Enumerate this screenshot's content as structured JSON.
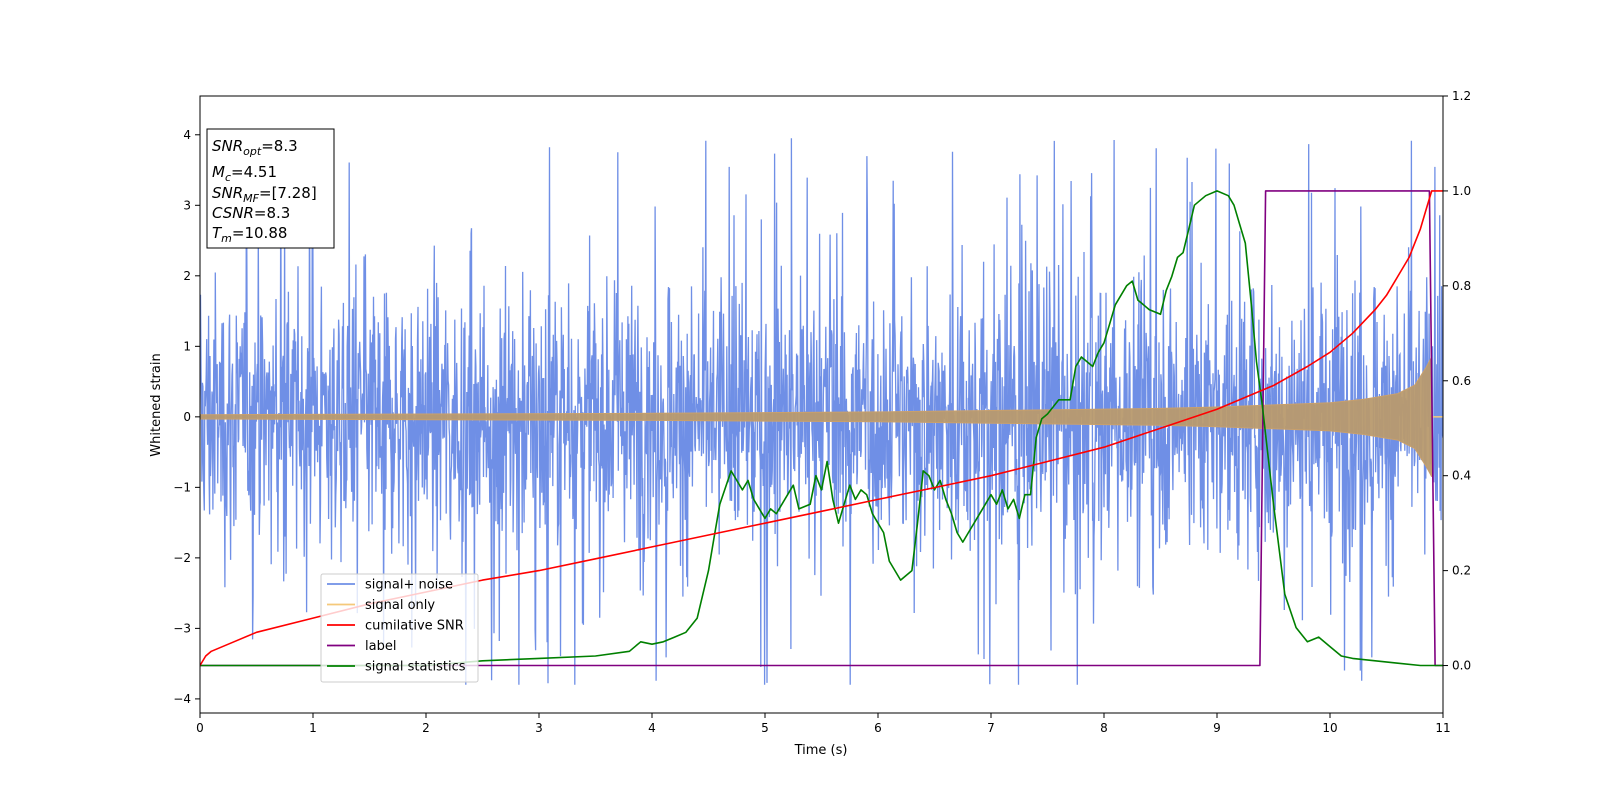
{
  "chart_data": {
    "type": "line",
    "xlabel": "Time (s)",
    "ylabel": "Whitened strain",
    "xlim": [
      0,
      11
    ],
    "ylim_left": [
      -4.2,
      4.55
    ],
    "ylim_right": [
      -0.1,
      1.2
    ],
    "xticks": [
      0,
      1,
      2,
      3,
      4,
      5,
      6,
      7,
      8,
      9,
      10,
      11
    ],
    "yticks_left": [
      -4,
      -3,
      -2,
      -1,
      0,
      1,
      2,
      3,
      4
    ],
    "yticks_right": [
      "0.0",
      "0.2",
      "0.4",
      "0.6",
      "0.8",
      "1.0",
      "1.2"
    ],
    "legend_position": "lower-left",
    "info_box": {
      "snr_opt": "=8.3",
      "mc": "=4.51",
      "snr_mf": "=[7.28]",
      "csnr": "=8.3",
      "tm": "=10.88"
    },
    "series": [
      {
        "name": "signal+ noise",
        "axis": "left",
        "color": "#6f8fe6",
        "description": "noise, approx. ±2 with spikes to ±4",
        "typical_range": [
          -2.0,
          2.0
        ],
        "peak_range": [
          -3.8,
          4.15
        ]
      },
      {
        "name": "signal only",
        "axis": "left",
        "color": "#f5c97a",
        "description": "chirp with growing envelope",
        "envelope_x": [
          0,
          2,
          4,
          6,
          7,
          8,
          8.5,
          9,
          9.5,
          10,
          10.3,
          10.6,
          10.75,
          10.85,
          10.9
        ],
        "envelope_y": [
          0.03,
          0.04,
          0.05,
          0.07,
          0.09,
          0.11,
          0.12,
          0.14,
          0.17,
          0.2,
          0.25,
          0.33,
          0.45,
          0.7,
          0.85
        ]
      },
      {
        "name": "cumilative SNR",
        "axis": "right",
        "color": "#ff0000",
        "x": [
          0,
          0.05,
          0.1,
          0.3,
          0.5,
          1.0,
          1.5,
          2.0,
          2.5,
          3.0,
          3.5,
          4.0,
          4.5,
          5.0,
          5.5,
          6.0,
          6.5,
          7.0,
          7.5,
          8.0,
          8.5,
          9.0,
          9.5,
          9.8,
          10.0,
          10.2,
          10.4,
          10.5,
          10.6,
          10.7,
          10.8,
          10.85,
          10.9,
          11.0
        ],
        "y": [
          0.0,
          0.02,
          0.03,
          0.05,
          0.07,
          0.1,
          0.13,
          0.155,
          0.18,
          0.2,
          0.225,
          0.25,
          0.275,
          0.3,
          0.325,
          0.35,
          0.375,
          0.4,
          0.43,
          0.46,
          0.5,
          0.54,
          0.59,
          0.63,
          0.66,
          0.7,
          0.75,
          0.78,
          0.82,
          0.86,
          0.92,
          0.96,
          1.0,
          1.0
        ]
      },
      {
        "name": "label",
        "axis": "right",
        "color": "#800080",
        "x": [
          0,
          9.38,
          9.43,
          10.88,
          10.93,
          11.0
        ],
        "y": [
          0,
          0,
          1,
          1,
          0,
          0
        ]
      },
      {
        "name": "signal statistics",
        "axis": "right",
        "color": "#008000",
        "x": [
          0,
          1.0,
          2.0,
          2.5,
          3.0,
          3.5,
          3.8,
          3.9,
          4.0,
          4.1,
          4.2,
          4.3,
          4.4,
          4.5,
          4.55,
          4.6,
          4.7,
          4.75,
          4.8,
          4.85,
          4.9,
          5.0,
          5.05,
          5.1,
          5.2,
          5.25,
          5.3,
          5.4,
          5.45,
          5.5,
          5.55,
          5.6,
          5.65,
          5.7,
          5.75,
          5.8,
          5.85,
          5.9,
          5.95,
          6.0,
          6.05,
          6.1,
          6.2,
          6.3,
          6.35,
          6.4,
          6.45,
          6.5,
          6.55,
          6.6,
          6.65,
          6.7,
          6.75,
          6.8,
          6.9,
          7.0,
          7.05,
          7.1,
          7.15,
          7.2,
          7.25,
          7.3,
          7.35,
          7.4,
          7.45,
          7.5,
          7.6,
          7.7,
          7.75,
          7.8,
          7.9,
          7.95,
          8.0,
          8.05,
          8.1,
          8.2,
          8.25,
          8.3,
          8.4,
          8.5,
          8.55,
          8.6,
          8.65,
          8.7,
          8.75,
          8.8,
          8.9,
          9.0,
          9.1,
          9.15,
          9.2,
          9.25,
          9.3,
          9.35,
          9.4,
          9.5,
          9.6,
          9.7,
          9.8,
          9.9,
          10.0,
          10.1,
          10.2,
          10.4,
          10.6,
          10.8,
          11.0
        ],
        "y": [
          0.0,
          0.0,
          0.0,
          0.01,
          0.015,
          0.02,
          0.03,
          0.05,
          0.045,
          0.05,
          0.06,
          0.07,
          0.1,
          0.2,
          0.27,
          0.34,
          0.41,
          0.39,
          0.37,
          0.39,
          0.35,
          0.31,
          0.33,
          0.32,
          0.36,
          0.38,
          0.33,
          0.34,
          0.4,
          0.37,
          0.43,
          0.35,
          0.3,
          0.34,
          0.38,
          0.35,
          0.37,
          0.36,
          0.32,
          0.3,
          0.28,
          0.22,
          0.18,
          0.2,
          0.3,
          0.41,
          0.4,
          0.37,
          0.39,
          0.35,
          0.32,
          0.28,
          0.26,
          0.28,
          0.32,
          0.36,
          0.34,
          0.37,
          0.33,
          0.35,
          0.31,
          0.36,
          0.36,
          0.48,
          0.52,
          0.53,
          0.56,
          0.56,
          0.63,
          0.65,
          0.63,
          0.66,
          0.68,
          0.72,
          0.76,
          0.8,
          0.81,
          0.77,
          0.75,
          0.74,
          0.79,
          0.82,
          0.86,
          0.87,
          0.92,
          0.97,
          0.99,
          1.0,
          0.99,
          0.97,
          0.93,
          0.89,
          0.77,
          0.64,
          0.55,
          0.34,
          0.15,
          0.08,
          0.05,
          0.06,
          0.04,
          0.02,
          0.015,
          0.01,
          0.005,
          0.0,
          0.0
        ]
      }
    ]
  }
}
